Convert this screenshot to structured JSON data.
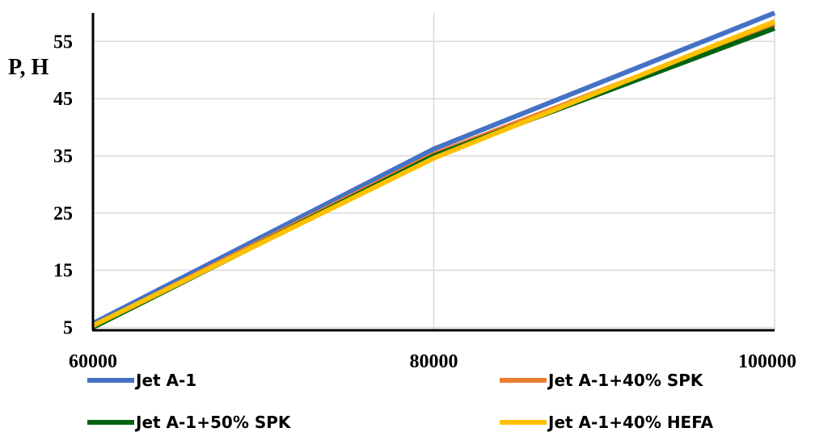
{
  "chart_data": {
    "type": "line",
    "ylabel": "P, H",
    "xlabel": "",
    "x": [
      60000,
      80000,
      100000
    ],
    "x_ticks": [
      60000,
      80000,
      100000
    ],
    "y_ticks": [
      5,
      15,
      25,
      35,
      45,
      55
    ],
    "xlim": [
      60000,
      100000
    ],
    "ylim": [
      4.5,
      60
    ],
    "grid": true,
    "legend_position": "bottom",
    "series": [
      {
        "name": "Jet A-1",
        "values": [
          5.7,
          36.2,
          60.0
        ],
        "color": "#4472C4"
      },
      {
        "name": "Jet A-1+40% SPK",
        "values": [
          5.2,
          35.3,
          58.0
        ],
        "color": "#ED7D31"
      },
      {
        "name": "Jet A-1+50% SPK",
        "values": [
          5.0,
          35.0,
          57.3
        ],
        "color": "#00630F"
      },
      {
        "name": "Jet A-1+40% HEFA",
        "values": [
          5.3,
          34.6,
          58.5
        ],
        "color": "#FFC000"
      }
    ]
  }
}
